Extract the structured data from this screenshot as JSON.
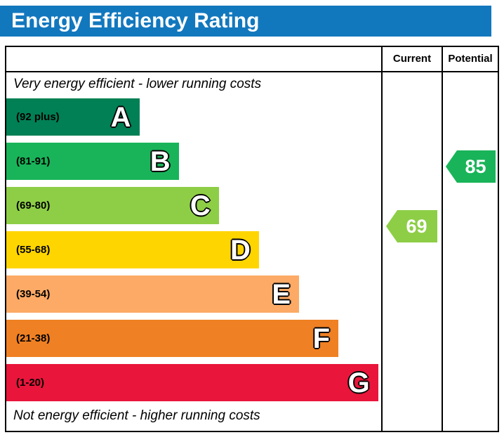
{
  "title": "Energy Efficiency Rating",
  "columns": {
    "current": "Current",
    "potential": "Potential"
  },
  "top_note": "Very energy efficient - lower running costs",
  "bottom_note": "Not energy efficient - higher running costs",
  "theme": {
    "header_bg": "#1278be",
    "border": "#000000"
  },
  "chart_data": {
    "type": "bar",
    "title": "Energy Efficiency Rating",
    "categories": [
      "A",
      "B",
      "C",
      "D",
      "E",
      "F",
      "G"
    ],
    "bands": [
      {
        "letter": "A",
        "range": "(92 plus)",
        "color": "#008054",
        "width_pct": 35.5
      },
      {
        "letter": "B",
        "range": "(81-91)",
        "color": "#19b459",
        "width_pct": 46.0
      },
      {
        "letter": "C",
        "range": "(69-80)",
        "color": "#8dce46",
        "width_pct": 56.7
      },
      {
        "letter": "D",
        "range": "(55-68)",
        "color": "#ffd500",
        "width_pct": 67.4
      },
      {
        "letter": "E",
        "range": "(39-54)",
        "color": "#fcaa65",
        "width_pct": 78.1
      },
      {
        "letter": "F",
        "range": "(21-38)",
        "color": "#ef8023",
        "width_pct": 88.6
      },
      {
        "letter": "G",
        "range": "(1-20)",
        "color": "#e9153b",
        "width_pct": 99.2
      }
    ],
    "current": {
      "value": 69,
      "band": "C",
      "color": "#8dce46"
    },
    "potential": {
      "value": 85,
      "band": "B",
      "color": "#19b459"
    },
    "layout": {
      "legend": "none",
      "grid": false,
      "value_range": [
        1,
        100
      ]
    }
  }
}
